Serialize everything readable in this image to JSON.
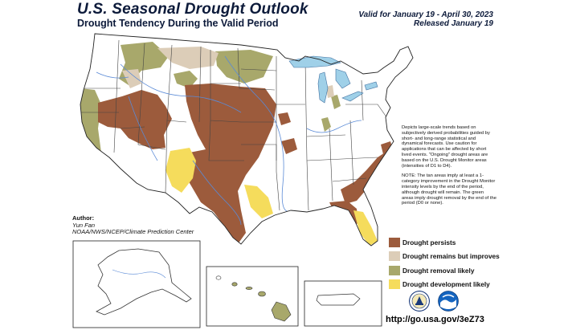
{
  "header": {
    "title": "U.S. Seasonal Drought Outlook",
    "subtitle": "Drought Tendency During the Valid Period",
    "valid": "Valid for January 19 - April 30, 2023",
    "released": "Released January 19"
  },
  "notes": [
    "Depicts large-scale trends based on subjectively derived probabilities guided by short- and long-range statistical and dynamical forecasts. Use caution for applications that can be affected by short lived events. \"Ongoing\" drought areas are based on the U.S. Drought Monitor areas (intensities of D1 to D4).",
    "NOTE: The tan areas imply at least a 1-category improvement in the Drought Monitor intensity levels by the end of the period, although drought will remain. The green areas imply drought removal by the end of the period (D0 or none)."
  ],
  "author": {
    "label": "Author:",
    "name": "Yun Fan",
    "org": "NOAA/NWS/NCEP/Climate Prediction Center"
  },
  "legend": [
    {
      "label": "Drought persists",
      "color": "#9c5b3c"
    },
    {
      "label": "Drought remains but improves",
      "color": "#dccdb8"
    },
    {
      "label": "Drought removal likely",
      "color": "#a8a86b"
    },
    {
      "label": "Drought development likely",
      "color": "#f5dc5c"
    }
  ],
  "logos": [
    {
      "icon": "doc-seal-icon"
    },
    {
      "icon": "noaa-logo-icon"
    }
  ],
  "url": "http://go.usa.gov/3eZ73",
  "colors": {
    "water": "#9fd0e8",
    "state_border": "#444444",
    "river": "#5a8ad6"
  }
}
